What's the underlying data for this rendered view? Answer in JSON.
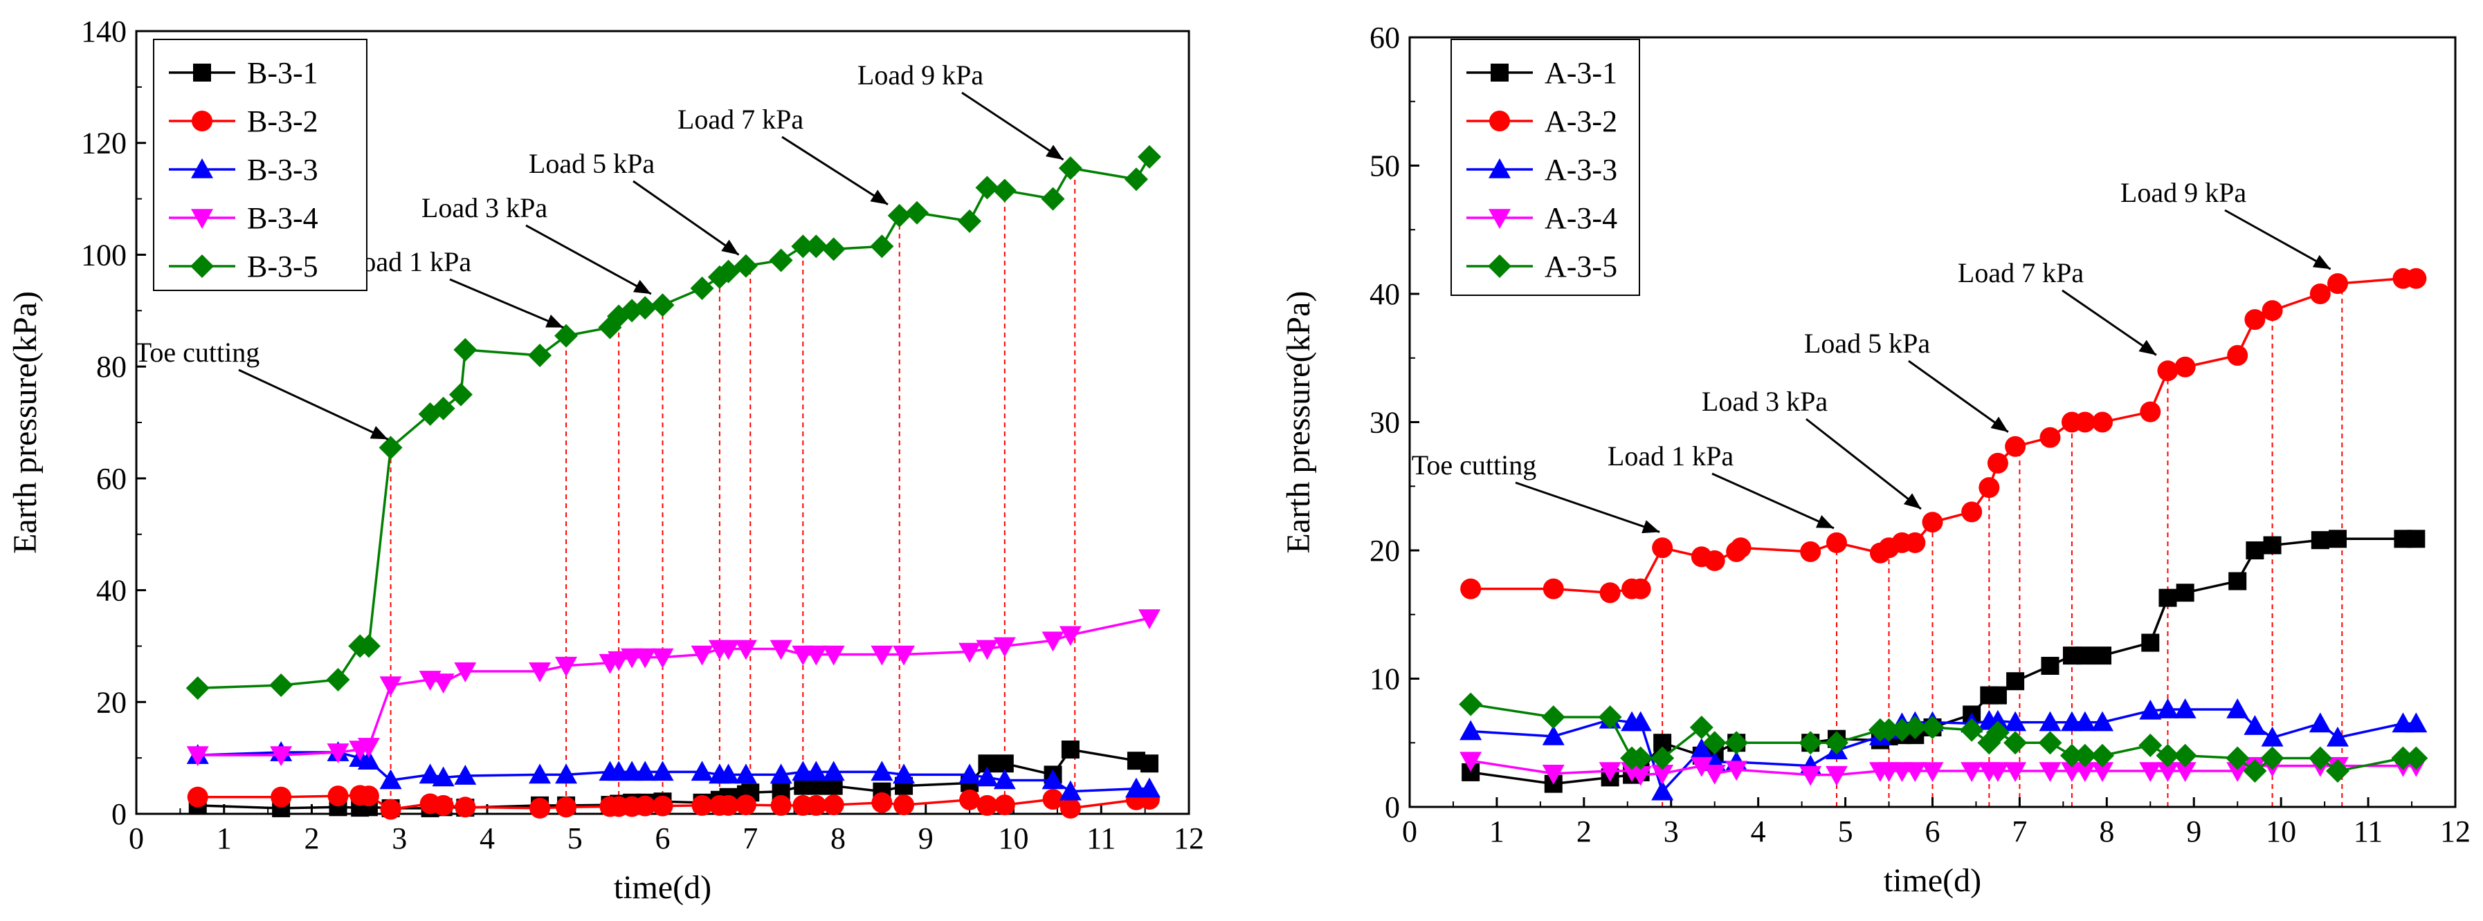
{
  "chart_data": [
    {
      "type": "line",
      "xlabel": "time(d)",
      "ylabel": "Earth pressure(kPa)",
      "xlim": [
        0,
        12
      ],
      "ylim": [
        0,
        140
      ],
      "xticks": [
        0,
        1,
        2,
        3,
        4,
        5,
        6,
        7,
        8,
        9,
        10,
        11,
        12
      ],
      "yticks": [
        0,
        20,
        40,
        60,
        80,
        100,
        120,
        140
      ],
      "grid": false,
      "legend_position": "top-left",
      "event_lines_x": [
        2.9,
        4.9,
        5.5,
        6.0,
        6.65,
        7.0,
        7.6,
        8.7,
        9.9,
        10.7
      ],
      "series": [
        {
          "name": "B-3-1",
          "color": "#000000",
          "marker": "square",
          "x": [
            0.7,
            1.65,
            2.3,
            2.55,
            2.65,
            2.9,
            3.35,
            3.5,
            3.75,
            4.6,
            4.9,
            5.4,
            5.5,
            5.65,
            5.8,
            6.0,
            6.45,
            6.65,
            6.75,
            6.95,
            7.0,
            7.35,
            7.6,
            7.75,
            7.95,
            8.5,
            8.75,
            9.5,
            9.7,
            9.9,
            10.45,
            10.65,
            11.4,
            11.55
          ],
          "y": [
            1.5,
            1.0,
            1.2,
            1.1,
            1.2,
            1.0,
            1.0,
            1.2,
            1.1,
            1.5,
            1.5,
            1.6,
            1.8,
            2.0,
            2.0,
            2.2,
            2.0,
            2.5,
            3.0,
            3.5,
            3.8,
            4.0,
            5.0,
            5.0,
            5.0,
            4.0,
            5.0,
            5.5,
            9.0,
            9.0,
            7.0,
            11.5,
            9.5,
            9.0
          ]
        },
        {
          "name": "B-3-2",
          "color": "#ff0000",
          "marker": "circle",
          "x": [
            0.7,
            1.65,
            2.3,
            2.55,
            2.65,
            2.9,
            3.35,
            3.5,
            3.75,
            4.6,
            4.9,
            5.4,
            5.5,
            5.65,
            5.8,
            6.0,
            6.45,
            6.65,
            6.75,
            6.95,
            7.35,
            7.6,
            7.75,
            7.95,
            8.5,
            8.75,
            9.5,
            9.7,
            9.9,
            10.45,
            10.65,
            11.4,
            11.55
          ],
          "y": [
            3.0,
            3.0,
            3.2,
            3.3,
            3.2,
            0.8,
            1.8,
            1.5,
            1.2,
            1.0,
            1.2,
            1.3,
            1.3,
            1.3,
            1.4,
            1.4,
            1.5,
            1.5,
            1.5,
            1.6,
            1.5,
            1.5,
            1.5,
            1.6,
            2.0,
            1.6,
            2.5,
            1.5,
            1.6,
            2.6,
            1.0,
            2.5,
            2.6
          ]
        },
        {
          "name": "B-3-3",
          "color": "#0000ff",
          "marker": "triangle-up",
          "x": [
            0.7,
            1.65,
            2.3,
            2.55,
            2.65,
            2.9,
            3.35,
            3.5,
            3.75,
            4.6,
            4.9,
            5.4,
            5.5,
            5.65,
            5.8,
            6.0,
            6.45,
            6.65,
            6.75,
            6.95,
            7.35,
            7.6,
            7.75,
            7.95,
            8.5,
            8.75,
            9.5,
            9.7,
            9.9,
            10.45,
            10.65,
            11.4,
            11.55
          ],
          "y": [
            10.5,
            11.0,
            11.0,
            10.0,
            9.5,
            6.0,
            7.0,
            6.5,
            6.8,
            7.0,
            7.0,
            7.5,
            7.5,
            7.5,
            7.5,
            7.5,
            7.5,
            7.0,
            7.0,
            7.0,
            7.0,
            7.5,
            7.5,
            7.5,
            7.5,
            7.0,
            7.0,
            6.5,
            6.0,
            6.0,
            4.0,
            4.5,
            4.5
          ]
        },
        {
          "name": "B-3-4",
          "color": "#ff00ff",
          "marker": "triangle-down",
          "x": [
            0.7,
            1.65,
            2.3,
            2.55,
            2.65,
            2.9,
            3.35,
            3.5,
            3.75,
            4.6,
            4.9,
            5.4,
            5.5,
            5.65,
            5.8,
            6.0,
            6.45,
            6.65,
            6.75,
            6.95,
            7.35,
            7.6,
            7.75,
            7.95,
            8.5,
            8.75,
            9.5,
            9.7,
            9.9,
            10.45,
            10.65,
            11.55
          ],
          "y": [
            10.5,
            10.5,
            11.0,
            11.5,
            12.0,
            23.0,
            24.0,
            23.5,
            25.5,
            25.5,
            26.5,
            27.0,
            27.5,
            28.0,
            28.0,
            28.0,
            28.5,
            29.5,
            29.5,
            29.5,
            29.5,
            28.5,
            28.5,
            28.5,
            28.5,
            28.5,
            29.0,
            29.5,
            30.0,
            31.0,
            32.0,
            35.0
          ]
        },
        {
          "name": "B-3-5",
          "color": "#008000",
          "marker": "diamond",
          "x": [
            0.7,
            1.65,
            2.3,
            2.55,
            2.65,
            2.9,
            3.35,
            3.5,
            3.7,
            3.75,
            4.6,
            4.9,
            5.4,
            5.5,
            5.65,
            5.8,
            6.0,
            6.45,
            6.65,
            6.75,
            6.95,
            7.35,
            7.6,
            7.75,
            7.95,
            8.5,
            8.7,
            8.9,
            9.5,
            9.7,
            9.9,
            10.45,
            10.65,
            11.4,
            11.55
          ],
          "y": [
            22.5,
            23.0,
            24.0,
            30.0,
            30.0,
            65.5,
            71.5,
            72.5,
            75.0,
            83.0,
            82.0,
            85.5,
            87.0,
            89.0,
            90.0,
            90.5,
            91.0,
            94.0,
            96.0,
            97.0,
            98.0,
            99.0,
            101.5,
            101.5,
            101.0,
            101.5,
            107.0,
            107.5,
            106.0,
            112.0,
            111.5,
            110.0,
            115.5,
            113.5,
            117.5
          ]
        }
      ],
      "annotations": [
        {
          "text": "Toe cutting",
          "target_x": 2.9,
          "target_y": 66
        },
        {
          "text": "Load 1 kPa",
          "target_x": 4.9,
          "target_y": 86
        },
        {
          "text": "Load 3 kPa",
          "target_x": 5.9,
          "target_y": 92
        },
        {
          "text": "Load 5 kPa",
          "target_x": 6.9,
          "target_y": 99
        },
        {
          "text": "Load 7 kPa",
          "target_x": 8.6,
          "target_y": 108
        },
        {
          "text": "Load 9 kPa",
          "target_x": 10.6,
          "target_y": 116
        }
      ]
    },
    {
      "type": "line",
      "xlabel": "time(d)",
      "ylabel": "Earth pressure(kPa)",
      "xlim": [
        0,
        12
      ],
      "ylim": [
        0,
        60
      ],
      "xticks": [
        0,
        1,
        2,
        3,
        4,
        5,
        6,
        7,
        8,
        9,
        10,
        11,
        12
      ],
      "yticks": [
        0,
        10,
        20,
        30,
        40,
        50,
        60
      ],
      "grid": false,
      "legend_position": "top-left",
      "event_lines_x": [
        2.9,
        4.9,
        5.5,
        6.0,
        6.65,
        7.0,
        7.6,
        8.7,
        9.9,
        10.7
      ],
      "series": [
        {
          "name": "A-3-1",
          "color": "#000000",
          "marker": "square",
          "x": [
            0.7,
            1.65,
            2.3,
            2.55,
            2.65,
            2.9,
            3.35,
            3.5,
            3.75,
            4.6,
            4.9,
            5.4,
            5.5,
            5.65,
            5.8,
            6.0,
            6.45,
            6.65,
            6.75,
            6.95,
            7.35,
            7.6,
            7.75,
            7.95,
            8.5,
            8.7,
            8.9,
            9.5,
            9.7,
            9.9,
            10.45,
            10.65,
            11.4,
            11.55
          ],
          "y": [
            2.7,
            1.8,
            2.3,
            2.5,
            2.7,
            5.0,
            4.0,
            4.2,
            5.0,
            5.0,
            5.3,
            5.2,
            5.5,
            5.6,
            5.6,
            6.2,
            7.2,
            8.7,
            8.7,
            9.8,
            11.0,
            11.8,
            11.8,
            11.8,
            12.8,
            16.3,
            16.7,
            17.6,
            20.0,
            20.4,
            20.8,
            20.9,
            20.9,
            20.9
          ]
        },
        {
          "name": "A-3-2",
          "color": "#ff0000",
          "marker": "circle",
          "x": [
            0.7,
            1.65,
            2.3,
            2.55,
            2.65,
            2.9,
            3.35,
            3.5,
            3.75,
            3.8,
            4.6,
            4.9,
            5.4,
            5.5,
            5.65,
            5.8,
            6.0,
            6.45,
            6.65,
            6.75,
            6.95,
            7.35,
            7.6,
            7.75,
            7.95,
            8.5,
            8.7,
            8.9,
            9.5,
            9.7,
            9.9,
            10.45,
            10.65,
            11.4,
            11.55
          ],
          "y": [
            17.0,
            17.0,
            16.7,
            17.0,
            17.0,
            20.2,
            19.5,
            19.2,
            19.9,
            20.2,
            19.9,
            20.6,
            19.8,
            20.2,
            20.6,
            20.6,
            22.2,
            23.0,
            24.9,
            26.8,
            28.1,
            28.8,
            30.0,
            30.0,
            30.0,
            30.8,
            34.0,
            34.3,
            35.2,
            38.0,
            38.7,
            40.0,
            40.8,
            41.2,
            41.2
          ]
        },
        {
          "name": "A-3-3",
          "color": "#0000ff",
          "marker": "triangle-up",
          "x": [
            0.7,
            1.65,
            2.3,
            2.55,
            2.65,
            2.9,
            3.35,
            3.5,
            3.75,
            4.6,
            4.9,
            5.4,
            5.5,
            5.65,
            5.8,
            6.0,
            6.45,
            6.65,
            6.75,
            6.95,
            7.35,
            7.6,
            7.75,
            7.95,
            8.5,
            8.7,
            8.9,
            9.5,
            9.7,
            9.9,
            10.45,
            10.65,
            11.4,
            11.55
          ],
          "y": [
            5.9,
            5.5,
            6.8,
            6.6,
            6.6,
            1.2,
            4.5,
            3.5,
            3.5,
            3.2,
            4.4,
            5.5,
            6.0,
            6.5,
            6.6,
            6.6,
            6.5,
            6.7,
            6.7,
            6.6,
            6.6,
            6.6,
            6.6,
            6.6,
            7.5,
            7.6,
            7.6,
            7.6,
            6.3,
            5.4,
            6.5,
            5.4,
            6.5,
            6.5
          ]
        },
        {
          "name": "A-3-4",
          "color": "#ff00ff",
          "marker": "triangle-down",
          "x": [
            0.7,
            1.65,
            2.3,
            2.55,
            2.65,
            2.9,
            3.35,
            3.5,
            3.75,
            4.6,
            4.9,
            5.4,
            5.5,
            5.65,
            5.8,
            6.0,
            6.45,
            6.65,
            6.75,
            6.95,
            7.35,
            7.6,
            7.75,
            7.95,
            8.5,
            8.7,
            8.9,
            9.5,
            9.7,
            9.9,
            10.45,
            10.65,
            11.4,
            11.55
          ],
          "y": [
            3.6,
            2.6,
            2.8,
            2.8,
            2.5,
            2.6,
            3.2,
            2.6,
            2.9,
            2.5,
            2.5,
            2.8,
            2.8,
            2.8,
            2.8,
            2.8,
            2.8,
            2.8,
            2.8,
            2.8,
            2.8,
            2.8,
            2.8,
            2.8,
            2.8,
            2.8,
            2.8,
            2.8,
            3.2,
            3.2,
            3.2,
            3.2,
            3.2,
            3.2
          ]
        },
        {
          "name": "A-3-5",
          "color": "#008000",
          "marker": "diamond",
          "x": [
            0.7,
            1.65,
            2.3,
            2.55,
            2.65,
            2.9,
            3.35,
            3.5,
            3.75,
            4.6,
            4.9,
            5.4,
            5.5,
            5.65,
            5.8,
            6.0,
            6.45,
            6.65,
            6.75,
            6.95,
            7.35,
            7.6,
            7.75,
            7.95,
            8.5,
            8.7,
            8.9,
            9.5,
            9.7,
            9.9,
            10.45,
            10.65,
            11.4,
            11.55
          ],
          "y": [
            8.0,
            7.0,
            7.0,
            3.8,
            3.8,
            3.8,
            6.2,
            5.0,
            5.0,
            5.0,
            5.0,
            6.0,
            6.0,
            6.0,
            6.2,
            6.2,
            6.0,
            5.0,
            5.8,
            5.0,
            5.0,
            4.0,
            4.0,
            4.0,
            4.8,
            4.0,
            4.0,
            3.8,
            2.8,
            3.8,
            3.8,
            2.8,
            3.8,
            3.8
          ]
        }
      ],
      "annotations": [
        {
          "text": "Toe cutting",
          "target_x": 2.9,
          "target_y": 21
        },
        {
          "text": "Load 1 kPa",
          "target_x": 4.9,
          "target_y": 21.3
        },
        {
          "text": "Load 3 kPa",
          "target_x": 5.9,
          "target_y": 22.8
        },
        {
          "text": "Load 5 kPa",
          "target_x": 6.9,
          "target_y": 28.8
        },
        {
          "text": "Load 7 kPa",
          "target_x": 8.6,
          "target_y": 34.8
        },
        {
          "text": "Load 9 kPa",
          "target_x": 10.6,
          "target_y": 41.5
        }
      ]
    }
  ]
}
